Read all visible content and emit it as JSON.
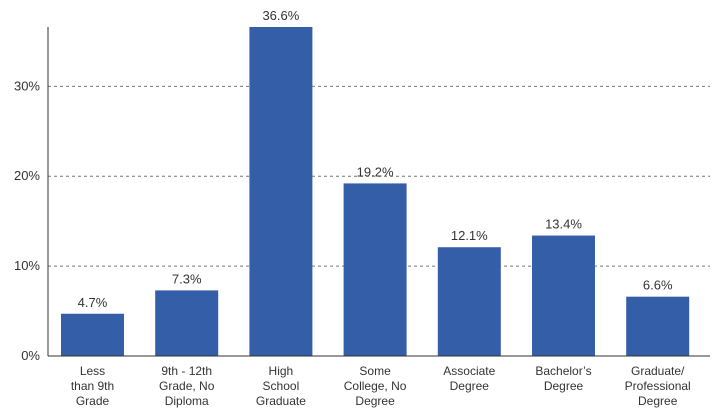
{
  "chart_data": {
    "type": "bar",
    "categories": [
      [
        "Less",
        "than 9th",
        "Grade"
      ],
      [
        "9th - 12th",
        "Grade, No",
        "Diploma"
      ],
      [
        "High",
        "School",
        "Graduate"
      ],
      [
        "Some",
        "College, No",
        "Degree"
      ],
      [
        "Associate",
        "Degree"
      ],
      [
        "Bachelor’s",
        "Degree"
      ],
      [
        "Graduate/",
        "Professional",
        "Degree"
      ]
    ],
    "values": [
      4.7,
      7.3,
      36.6,
      19.2,
      12.1,
      13.4,
      6.6
    ],
    "data_labels": [
      "4.7%",
      "7.3%",
      "36.6%",
      "19.2%",
      "12.1%",
      "13.4%",
      "6.6%"
    ],
    "yticks": [
      0,
      10,
      20,
      30
    ],
    "ytick_labels": [
      "0%",
      "10%",
      "20%",
      "30%"
    ],
    "ylim": [
      0,
      36.6
    ],
    "grid": true,
    "title": "",
    "xlabel": "",
    "ylabel": "",
    "colors": {
      "bar": "#355EA9",
      "text": "#333333",
      "grid": "#777777"
    }
  }
}
